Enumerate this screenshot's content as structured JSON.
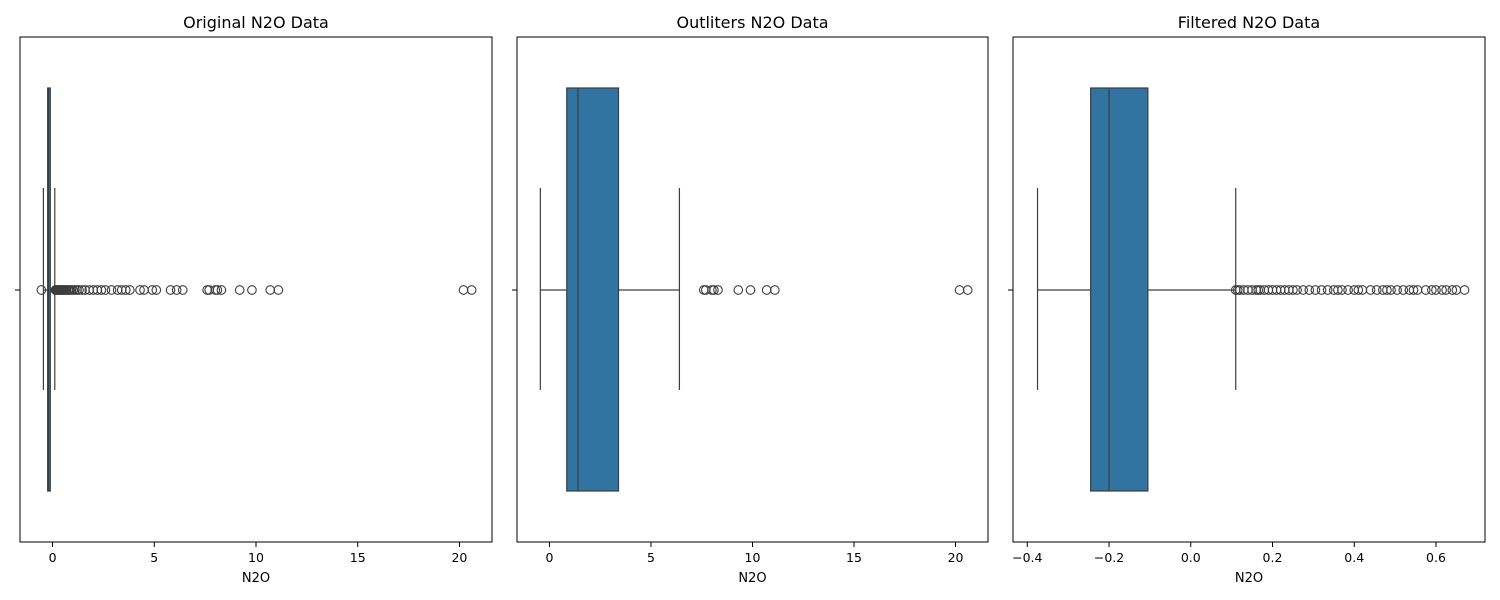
{
  "colors": {
    "box_fill": "#3274a1",
    "line": "#3d3d3d",
    "outlier_edge": "#3d3d3d",
    "frame": "#000000",
    "background": "#ffffff"
  },
  "chart_data": [
    {
      "type": "box",
      "orientation": "horizontal",
      "title": "Original N2O Data",
      "xlabel": "N2O",
      "ylabel": "",
      "xlim": [
        -1.6,
        21.6
      ],
      "xticks": [
        0,
        5,
        10,
        15,
        20
      ],
      "xtick_labels": [
        "0",
        "5",
        "10",
        "15",
        "20"
      ],
      "grid": false,
      "box": {
        "whisker_low": -0.45,
        "q1": -0.24,
        "median": -0.2,
        "q3": -0.11,
        "whisker_high": 0.11
      },
      "outliers": [
        -0.55,
        0.14,
        0.18,
        0.22,
        0.26,
        0.3,
        0.34,
        0.38,
        0.42,
        0.46,
        0.5,
        0.55,
        0.6,
        0.65,
        0.7,
        0.78,
        0.85,
        0.92,
        1.0,
        1.1,
        1.2,
        1.3,
        1.45,
        1.6,
        1.8,
        2.0,
        2.2,
        2.4,
        2.6,
        2.9,
        3.2,
        3.4,
        3.6,
        3.8,
        4.3,
        4.5,
        4.9,
        5.1,
        5.8,
        6.1,
        6.4,
        7.6,
        7.7,
        8.0,
        8.1,
        8.3,
        9.2,
        9.8,
        10.7,
        11.1,
        20.2,
        20.6
      ]
    },
    {
      "type": "box",
      "orientation": "horizontal",
      "title": "Outliters N2O Data",
      "xlabel": "N2O",
      "ylabel": "",
      "xlim": [
        -1.6,
        21.6
      ],
      "xticks": [
        0,
        5,
        10,
        15,
        20
      ],
      "xtick_labels": [
        "0",
        "5",
        "10",
        "15",
        "20"
      ],
      "grid": false,
      "box": {
        "whisker_low": -0.45,
        "q1": 0.85,
        "median": 1.4,
        "q3": 3.4,
        "whisker_high": 6.4
      },
      "outliers": [
        7.6,
        7.7,
        8.0,
        8.1,
        8.3,
        9.3,
        9.9,
        10.7,
        11.1,
        20.2,
        20.6
      ]
    },
    {
      "type": "box",
      "orientation": "horizontal",
      "title": "Filtered N2O Data",
      "xlabel": "N2O",
      "ylabel": "",
      "xlim": [
        -0.435,
        0.72
      ],
      "xticks": [
        -0.4,
        -0.2,
        0.0,
        0.2,
        0.4,
        0.6
      ],
      "xtick_labels": [
        "−0.4",
        "−0.2",
        "0.0",
        "0.2",
        "0.4",
        "0.6"
      ],
      "grid": false,
      "box": {
        "whisker_low": -0.375,
        "q1": -0.245,
        "median": -0.2,
        "q3": -0.105,
        "whisker_high": 0.11
      },
      "outliers": [
        0.11,
        0.115,
        0.12,
        0.13,
        0.14,
        0.15,
        0.16,
        0.165,
        0.17,
        0.18,
        0.19,
        0.2,
        0.21,
        0.22,
        0.23,
        0.24,
        0.25,
        0.26,
        0.275,
        0.29,
        0.305,
        0.32,
        0.335,
        0.35,
        0.36,
        0.37,
        0.385,
        0.4,
        0.41,
        0.42,
        0.44,
        0.455,
        0.47,
        0.48,
        0.49,
        0.505,
        0.52,
        0.535,
        0.545,
        0.555,
        0.575,
        0.59,
        0.6,
        0.615,
        0.625,
        0.64,
        0.65,
        0.67
      ]
    }
  ]
}
